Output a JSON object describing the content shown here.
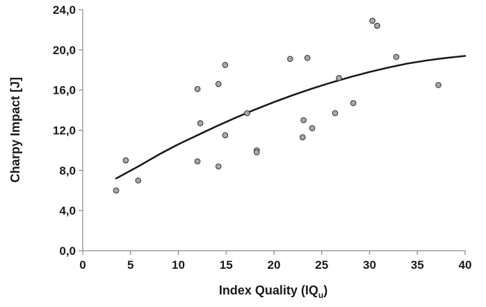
{
  "chart_data": {
    "type": "scatter",
    "title": "",
    "xlabel": "Index Quality (IQ",
    "xlabel_sub": "u",
    "xlabel_close": ")",
    "ylabel": "Charpy Impact   [J]",
    "xlim": [
      0,
      40
    ],
    "ylim": [
      0,
      24
    ],
    "xticks": [
      0,
      5,
      10,
      15,
      20,
      25,
      30,
      35,
      40
    ],
    "xtick_labels": [
      "0",
      "5",
      "10",
      "15",
      "20",
      "25",
      "30",
      "35",
      "40"
    ],
    "yticks": [
      0,
      4,
      8,
      12,
      16,
      20,
      24
    ],
    "ytick_labels": [
      "0,0",
      "4,0",
      "8,0",
      "12,0",
      "16,0",
      "20,0",
      "24,0"
    ],
    "grid": false,
    "points": [
      {
        "x": 3.5,
        "y": 6.0
      },
      {
        "x": 4.5,
        "y": 9.0
      },
      {
        "x": 5.8,
        "y": 7.0
      },
      {
        "x": 12.0,
        "y": 16.1
      },
      {
        "x": 12.0,
        "y": 8.9
      },
      {
        "x": 12.3,
        "y": 12.7
      },
      {
        "x": 14.2,
        "y": 16.6
      },
      {
        "x": 14.2,
        "y": 8.4
      },
      {
        "x": 14.9,
        "y": 18.5
      },
      {
        "x": 14.9,
        "y": 11.5
      },
      {
        "x": 17.2,
        "y": 13.7
      },
      {
        "x": 18.2,
        "y": 10.0
      },
      {
        "x": 18.2,
        "y": 9.8
      },
      {
        "x": 21.7,
        "y": 19.1
      },
      {
        "x": 23.0,
        "y": 11.3
      },
      {
        "x": 23.1,
        "y": 13.0
      },
      {
        "x": 23.5,
        "y": 19.2
      },
      {
        "x": 24.0,
        "y": 12.2
      },
      {
        "x": 26.4,
        "y": 13.7
      },
      {
        "x": 26.8,
        "y": 17.2
      },
      {
        "x": 28.3,
        "y": 14.7
      },
      {
        "x": 30.3,
        "y": 22.9
      },
      {
        "x": 30.8,
        "y": 22.4
      },
      {
        "x": 32.8,
        "y": 19.3
      },
      {
        "x": 37.2,
        "y": 16.5
      }
    ],
    "trendline": {
      "type": "polynomial",
      "x": [
        3.5,
        6,
        8,
        10,
        12,
        14,
        16,
        18,
        20,
        22,
        24,
        26,
        28,
        30,
        32,
        34,
        36,
        38,
        40
      ],
      "y": [
        7.2,
        8.5,
        9.6,
        10.6,
        11.5,
        12.4,
        13.25,
        14.05,
        14.8,
        15.5,
        16.15,
        16.75,
        17.3,
        17.8,
        18.25,
        18.65,
        18.95,
        19.2,
        19.4
      ]
    },
    "colors": {
      "marker_fill": "#a8a8a8",
      "marker_stroke": "#3a3a3a",
      "line": "#1a1a1a",
      "axis": "#888888",
      "text": "#1a1a1a"
    }
  }
}
